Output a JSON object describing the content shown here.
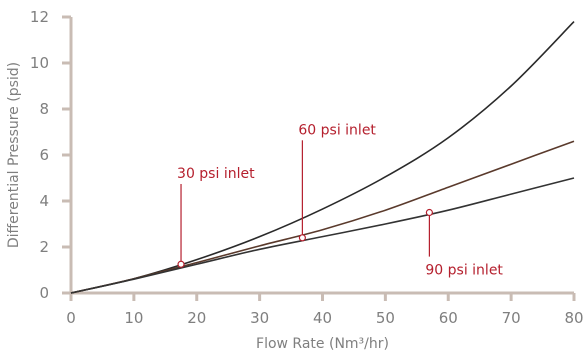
{
  "chart_data": {
    "type": "line",
    "xlabel": "Flow Rate (Nm³/hr)",
    "ylabel": "Differential Pressure (psid)",
    "xlim": [
      0,
      80
    ],
    "ylim": [
      0,
      12
    ],
    "xticks": [
      "0",
      "10",
      "20",
      "30",
      "40",
      "50",
      "60",
      "70",
      "80"
    ],
    "yticks": [
      "0",
      "2",
      "4",
      "6",
      "8",
      "10",
      "12"
    ],
    "grid": false,
    "colors": {
      "axis": "#c9bcb4",
      "tick_text": "#7f7f7f",
      "annotation": "#b5202e",
      "marker_fill": "#ffffff"
    },
    "series": [
      {
        "color": "#2a2a2a",
        "x": [
          0,
          10,
          20,
          30,
          40,
          50,
          60,
          70,
          80
        ],
        "y": [
          0,
          0.62,
          1.45,
          2.45,
          3.65,
          5.05,
          6.75,
          9.0,
          11.8
        ]
      },
      {
        "color": "#5a3a2c",
        "x": [
          0,
          10,
          20,
          30,
          40,
          50,
          60,
          70,
          80
        ],
        "y": [
          0,
          0.62,
          1.32,
          2.05,
          2.75,
          3.6,
          4.6,
          5.6,
          6.6
        ]
      },
      {
        "color": "#333333",
        "x": [
          0,
          10,
          20,
          30,
          40,
          50,
          60,
          70,
          80
        ],
        "y": [
          0,
          0.6,
          1.25,
          1.9,
          2.45,
          3.0,
          3.6,
          4.3,
          5.0
        ]
      }
    ],
    "annotations": [
      {
        "label": "30 psi inlet",
        "x": 17.5,
        "y": 1.25,
        "label_y": 5.0
      },
      {
        "label": "60 psi inlet",
        "x": 36.8,
        "y": 2.4,
        "label_y": 6.9
      },
      {
        "label": "90 psi inlet",
        "x": 57.0,
        "y": 3.5,
        "label_y": 0.8
      }
    ]
  }
}
